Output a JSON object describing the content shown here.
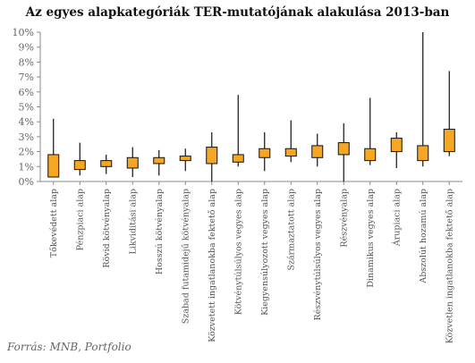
{
  "chart_data": {
    "type": "boxplot",
    "title": "Az egyes alapkategóriák TER-mutatójának  alakulása 2013-ban",
    "source": "Forrás: MNB, Portfolio",
    "ylim": [
      0,
      10
    ],
    "yticks": [
      "0%",
      "1%",
      "2%",
      "3%",
      "4%",
      "5%",
      "6%",
      "7%",
      "8%",
      "9%",
      "10%"
    ],
    "grid": false,
    "box_color": "#f5a623",
    "categories": [
      "Tőkevédett alap",
      "Pénzpiaci alap",
      "Rövid kötvényalap",
      "Likviditási alap",
      "Hosszú kötvényalap",
      "Szabad futamidejű kötvényalap",
      "Közvetett ingatlanokba fektető alap",
      "Kötvénytúlsúlyos vegyes alap",
      "Kiegyensúlyozott vegyes alap",
      "Származtatott alap",
      "Részvénytúlsúlyos vegyes alap",
      "Részvényalap",
      "Dinamikus vegyes alap",
      "Árupiaci alap",
      "Abszolút hozamú alap",
      "Közvetlen ingatlanokba fektető alap"
    ],
    "series": [
      {
        "min": 0.3,
        "q1": 0.3,
        "q3": 1.8,
        "max": 4.2
      },
      {
        "min": 0.4,
        "q1": 0.8,
        "q3": 1.4,
        "max": 2.6
      },
      {
        "min": 0.5,
        "q1": 1.0,
        "q3": 1.4,
        "max": 1.8
      },
      {
        "min": 0.3,
        "q1": 0.9,
        "q3": 1.6,
        "max": 2.3
      },
      {
        "min": 0.4,
        "q1": 1.2,
        "q3": 1.6,
        "max": 2.1
      },
      {
        "min": 0.7,
        "q1": 1.4,
        "q3": 1.7,
        "max": 2.2
      },
      {
        "min": 0.0,
        "q1": 1.2,
        "q3": 2.3,
        "max": 3.3
      },
      {
        "min": 1.0,
        "q1": 1.3,
        "q3": 1.8,
        "max": 5.8
      },
      {
        "min": 0.7,
        "q1": 1.6,
        "q3": 2.2,
        "max": 3.3
      },
      {
        "min": 1.3,
        "q1": 1.7,
        "q3": 2.2,
        "max": 4.1
      },
      {
        "min": 1.0,
        "q1": 1.6,
        "q3": 2.4,
        "max": 3.2
      },
      {
        "min": 0.0,
        "q1": 1.8,
        "q3": 2.6,
        "max": 3.9
      },
      {
        "min": 1.1,
        "q1": 1.4,
        "q3": 2.2,
        "max": 5.6
      },
      {
        "min": 0.9,
        "q1": 2.0,
        "q3": 2.9,
        "max": 3.3
      },
      {
        "min": 1.0,
        "q1": 1.4,
        "q3": 2.4,
        "max": 10.0
      },
      {
        "min": 1.7,
        "q1": 2.0,
        "q3": 3.5,
        "max": 7.4
      }
    ]
  }
}
